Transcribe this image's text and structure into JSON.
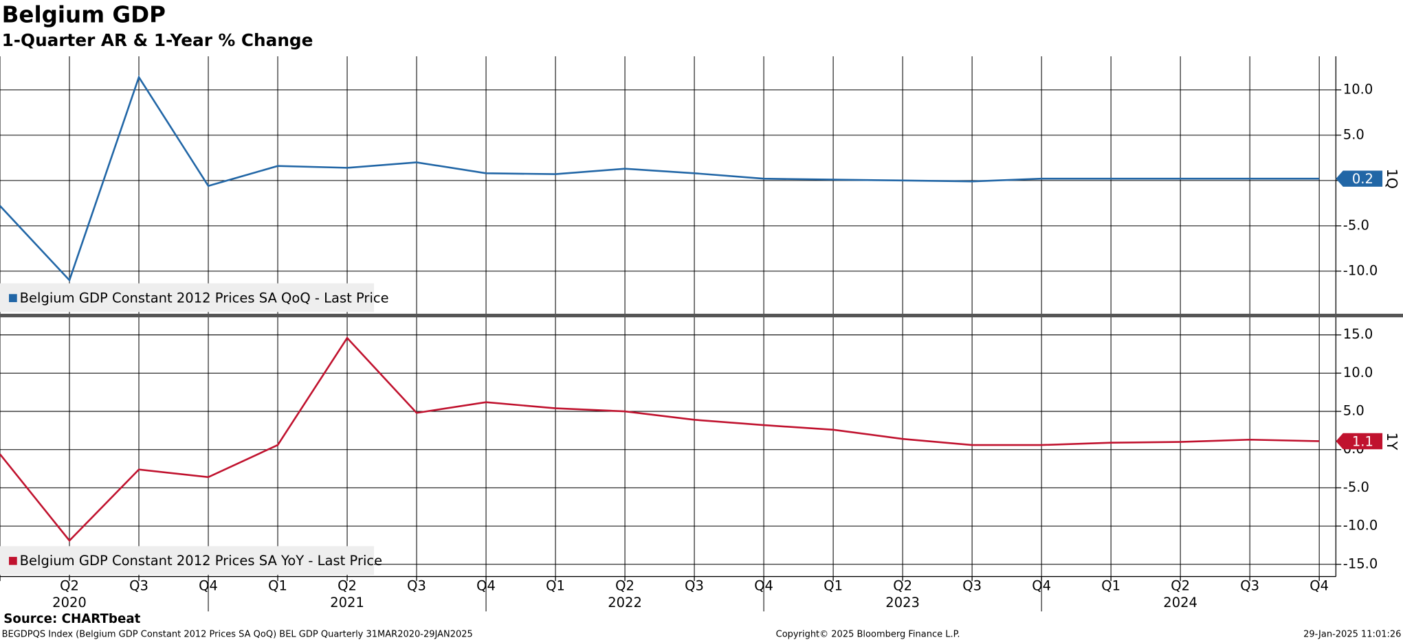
{
  "header": {
    "title": "Belgium GDP",
    "subtitle": "1-Quarter AR & 1-Year % Change"
  },
  "chart_data": [
    {
      "type": "line",
      "grid": true,
      "series": [
        {
          "name": "Belgium GDP Constant 2012 Prices SA QoQ - Last Price",
          "tag": "1Q",
          "color": "#2166a6",
          "values": [
            -2.8,
            -11.0,
            11.4,
            -0.6,
            1.6,
            1.4,
            2.0,
            0.8,
            0.7,
            1.3,
            0.8,
            0.2,
            0.1,
            0.0,
            -0.1,
            0.2,
            0.2,
            0.2,
            0.2,
            0.2
          ]
        }
      ],
      "ylim": [
        -14.7,
        13.7
      ],
      "yticks": [
        {
          "value": 10,
          "label": "10.0"
        },
        {
          "value": 5,
          "label": "5.0"
        },
        {
          "value": 0,
          "label": "0.0"
        },
        {
          "value": -5,
          "label": "-5.0"
        },
        {
          "value": -10,
          "label": "-10.0"
        }
      ]
    },
    {
      "type": "line",
      "grid": true,
      "categories": [
        null,
        "Q2",
        "Q3",
        "Q4",
        "Q1",
        "Q2",
        "Q3",
        "Q4",
        "Q1",
        "Q2",
        "Q3",
        "Q4",
        "Q1",
        "Q2",
        "Q3",
        "Q4",
        "Q1",
        "Q2",
        "Q3",
        "Q4"
      ],
      "years": [
        "2020",
        "2021",
        "2022",
        "2023",
        "2024"
      ],
      "series": [
        {
          "name": "Belgium GDP Constant 2012 Prices SA YoY - Last Price",
          "tag": "1Y",
          "color": "#c0122e",
          "values": [
            -0.6,
            -11.9,
            -2.6,
            -3.6,
            0.6,
            14.6,
            4.8,
            6.2,
            5.4,
            5.0,
            3.9,
            3.2,
            2.6,
            1.4,
            0.6,
            0.6,
            0.9,
            1.0,
            1.3,
            1.1
          ]
        }
      ],
      "ylim": [
        -16.6,
        17.3
      ],
      "yticks": [
        {
          "value": 15,
          "label": "15.0"
        },
        {
          "value": 10,
          "label": "10.0"
        },
        {
          "value": 5,
          "label": "5.0"
        },
        {
          "value": 0,
          "label": "0.0"
        },
        {
          "value": -5,
          "label": "-5.0"
        },
        {
          "value": -10,
          "label": "-10.0"
        },
        {
          "value": -15,
          "label": "-15.0"
        }
      ]
    }
  ],
  "footer": {
    "source": "Source: CHARTbeat",
    "left": "BEGDPQS Index (Belgium GDP Constant 2012 Prices SA QoQ) BEL GDP  Quarterly 31MAR2020-29JAN2025",
    "center": "Copyright© 2025 Bloomberg Finance L.P.",
    "right": "29-Jan-2025 11:01:26"
  }
}
